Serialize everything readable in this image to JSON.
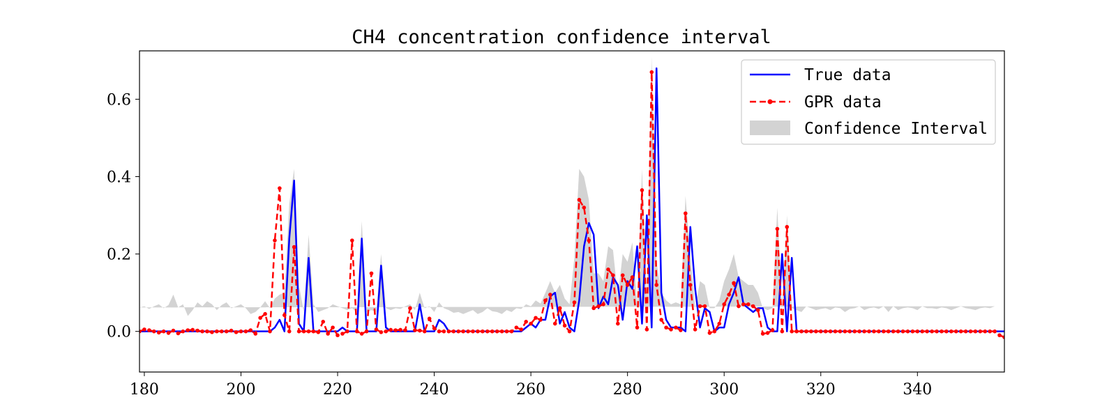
{
  "chart_data": {
    "type": "line",
    "title": "CH4 concentration confidence interval",
    "xlabel": "",
    "ylabel": "",
    "xlim": [
      179,
      358
    ],
    "ylim": [
      -0.105,
      0.725
    ],
    "x_ticks": [
      180,
      200,
      220,
      240,
      260,
      280,
      300,
      320,
      340
    ],
    "y_ticks": [
      0.0,
      0.2,
      0.4,
      0.6
    ],
    "x_tick_labels": [
      "180",
      "200",
      "220",
      "240",
      "260",
      "280",
      "300",
      "320",
      "340"
    ],
    "y_tick_labels": [
      "0.0",
      "0.2",
      "0.4",
      "0.6"
    ],
    "grid": false,
    "legend_position": "top-right",
    "colors": {
      "true_data": "#0000ff",
      "gpr_data": "#ff0000",
      "confidence": "#d3d3d3"
    },
    "legend": [
      {
        "key": "true_data",
        "label": "True data"
      },
      {
        "key": "gpr_data",
        "label": "GPR data"
      },
      {
        "key": "confidence",
        "label": "Confidence Interval"
      }
    ],
    "x_start": 179,
    "x_step": 1,
    "series": [
      {
        "name": "True data",
        "values": [
          0,
          0,
          0,
          0,
          0,
          0,
          0,
          0,
          0,
          0,
          0,
          0,
          0,
          0,
          0,
          0,
          0,
          0,
          0,
          0,
          0,
          0,
          0,
          0,
          0,
          0,
          0,
          0,
          0.01,
          0.03,
          0,
          0.24,
          0.39,
          0.02,
          0,
          0.19,
          0,
          0,
          0,
          0,
          0,
          0,
          0.01,
          0,
          0,
          0,
          0.24,
          0,
          0,
          0,
          0.17,
          0.01,
          0,
          0,
          0,
          0,
          0,
          0,
          0.07,
          0,
          0,
          0,
          0.03,
          0.02,
          0,
          0,
          0,
          0,
          0,
          0,
          0,
          0,
          0,
          0,
          0,
          0,
          0,
          0,
          0,
          0,
          0.01,
          0.02,
          0.01,
          0.03,
          0.03,
          0.09,
          0.1,
          0.02,
          0.05,
          0.01,
          0,
          0.08,
          0.22,
          0.28,
          0.25,
          0.06,
          0.09,
          0.07,
          0.14,
          0.12,
          0.03,
          0.13,
          0.11,
          0.22,
          0.02,
          0.3,
          0.01,
          0.68,
          0.1,
          0.03,
          0.01,
          0.01,
          0.01,
          0,
          0.27,
          0.11,
          0.01,
          0.06,
          0.05,
          0,
          0.01,
          0.01,
          0.07,
          0.1,
          0.14,
          0.07,
          0.06,
          0.05,
          0.06,
          0.06,
          0.01,
          0,
          0,
          0.2,
          0,
          0.19,
          0,
          0,
          0,
          0,
          0,
          0,
          0,
          0,
          0,
          0,
          0,
          0,
          0,
          0,
          0,
          0,
          0,
          0,
          0,
          0,
          0,
          0,
          0,
          0,
          0,
          0,
          0,
          0,
          0,
          0,
          0,
          0,
          0,
          0,
          0,
          0,
          0,
          0,
          0,
          0,
          0,
          0,
          0,
          0,
          0
        ]
      },
      {
        "name": "GPR data",
        "values": [
          0,
          0.005,
          0.003,
          0,
          -0.003,
          0,
          -0.004,
          0.002,
          -0.005,
          0,
          0.003,
          0.004,
          0.002,
          0,
          0,
          -0.002,
          0,
          0,
          0,
          0.002,
          -0.002,
          0,
          0,
          0.003,
          -0.006,
          0.035,
          0.045,
          0,
          0.235,
          0.37,
          0.042,
          0,
          0.218,
          0,
          0,
          0,
          0,
          -0.002,
          0.025,
          -0.006,
          0.01,
          -0.01,
          -0.006,
          0,
          0.235,
          0,
          -0.006,
          0,
          0.15,
          0.005,
          -0.002,
          0,
          0.004,
          0.003,
          0.004,
          0.003,
          0.06,
          0.003,
          0.002,
          0,
          0.033,
          0.008,
          0,
          0,
          0,
          0,
          0,
          0,
          0,
          0,
          0,
          0,
          0,
          0,
          0,
          0,
          0,
          0,
          0.01,
          0.005,
          0.025,
          0.02,
          0.035,
          0.03,
          0.08,
          0.095,
          0.02,
          0.06,
          0.015,
          0,
          0.075,
          0.34,
          0.32,
          0.235,
          0.06,
          0.065,
          0.07,
          0.16,
          0.145,
          0.02,
          0.145,
          0.12,
          0.14,
          0.01,
          0.365,
          0.005,
          0.67,
          0.12,
          0.03,
          0.01,
          0.005,
          0.01,
          0.003,
          0.305,
          0.12,
          0.005,
          0.065,
          0.065,
          -0.004,
          0,
          0.02,
          0.07,
          0.095,
          0.125,
          0.065,
          0.07,
          0.07,
          0.065,
          0.055,
          -0.006,
          -0.004,
          0.003,
          0.265,
          0,
          0.27,
          0,
          0,
          0,
          0,
          0,
          0,
          0,
          0,
          0,
          0,
          0,
          0,
          0,
          0,
          0,
          0,
          0,
          0,
          0,
          0,
          0,
          0,
          0,
          0,
          0,
          0,
          0,
          0,
          0,
          0,
          0,
          0,
          0,
          0,
          0,
          0,
          0,
          0,
          0,
          0,
          0,
          0,
          0,
          -0.01,
          -0.015,
          0
        ]
      },
      {
        "name": "Confidence Interval upper",
        "values": [
          0.062,
          0.065,
          0.058,
          0.065,
          0.07,
          0.06,
          0.068,
          0.095,
          0.062,
          0.07,
          0.04,
          0.055,
          0.075,
          0.065,
          0.078,
          0.07,
          0.055,
          0.068,
          0.075,
          0.06,
          0.065,
          0.07,
          0.06,
          0.045,
          0.05,
          0.062,
          0.078,
          0.06,
          0.085,
          0.095,
          0.1,
          0.33,
          0.42,
          0.12,
          0.05,
          0.25,
          0.07,
          0.05,
          0.055,
          0.06,
          0.07,
          0.065,
          0.06,
          0.055,
          0.06,
          0.05,
          0.285,
          0.05,
          0.055,
          0.05,
          0.2,
          0.06,
          0.055,
          0.06,
          0.058,
          0.065,
          0.07,
          0.055,
          0.1,
          0.06,
          0.065,
          0.05,
          0.075,
          0.06,
          0.055,
          0.048,
          0.05,
          0.045,
          0.05,
          0.055,
          0.045,
          0.05,
          0.06,
          0.052,
          0.05,
          0.045,
          0.055,
          0.05,
          0.06,
          0.058,
          0.07,
          0.065,
          0.08,
          0.072,
          0.1,
          0.13,
          0.1,
          0.12,
          0.085,
          0.07,
          0.19,
          0.42,
          0.4,
          0.34,
          0.15,
          0.15,
          0.13,
          0.22,
          0.21,
          0.09,
          0.2,
          0.18,
          0.23,
          0.07,
          0.42,
          0.08,
          0.71,
          0.18,
          0.1,
          0.08,
          0.07,
          0.075,
          0.07,
          0.35,
          0.2,
          0.06,
          0.13,
          0.12,
          0.06,
          0.06,
          0.08,
          0.13,
          0.16,
          0.2,
          0.14,
          0.13,
          0.12,
          0.12,
          0.1,
          0.06,
          0.055,
          0.06,
          0.32,
          0.06,
          0.3,
          0.06,
          0.055,
          0.05,
          0.065,
          0.06,
          0.055,
          0.058,
          0.06,
          0.055,
          0.062,
          0.06,
          0.05,
          0.058,
          0.06,
          0.065,
          0.055,
          0.06,
          0.062,
          0.058,
          0.065,
          0.05,
          0.065,
          0.055,
          0.06,
          0.062,
          0.06,
          0.055,
          0.065,
          0.06,
          0.06,
          0.058,
          0.062,
          0.06,
          0.055,
          0.06,
          0.065,
          0.06,
          0.058,
          0.055,
          0.06,
          0.062,
          0.06,
          0.065
        ]
      },
      {
        "name": "Confidence Interval lower",
        "values": [
          -0.055,
          -0.05,
          -0.06,
          -0.06,
          -0.065,
          -0.07,
          -0.09,
          -0.07,
          -0.06,
          -0.065,
          -0.085,
          -0.06,
          -0.065,
          -0.06,
          -0.05,
          -0.055,
          -0.07,
          -0.065,
          -0.06,
          -0.065,
          -0.05,
          -0.06,
          -0.065,
          -0.06,
          -0.06,
          -0.065,
          -0.06,
          -0.07,
          -0.08,
          -0.045,
          -0.05,
          0.1,
          0.33,
          -0.02,
          -0.06,
          0.15,
          -0.06,
          -0.06,
          -0.065,
          -0.06,
          -0.055,
          -0.06,
          -0.07,
          -0.06,
          -0.065,
          -0.06,
          0.18,
          -0.06,
          -0.065,
          -0.06,
          0.1,
          -0.06,
          -0.065,
          -0.06,
          -0.06,
          -0.065,
          -0.06,
          -0.065,
          0.01,
          -0.06,
          -0.065,
          -0.07,
          -0.01,
          -0.05,
          -0.055,
          -0.06,
          -0.065,
          -0.06,
          -0.055,
          -0.06,
          -0.06,
          -0.055,
          -0.05,
          -0.06,
          -0.065,
          -0.06,
          -0.055,
          -0.06,
          -0.05,
          -0.055,
          -0.045,
          -0.05,
          -0.035,
          -0.04,
          0.0,
          0.06,
          -0.04,
          -0.02,
          -0.06,
          -0.07,
          -0.05,
          0.26,
          0.24,
          0.13,
          -0.03,
          -0.01,
          0.0,
          0.1,
          0.08,
          -0.05,
          0.09,
          0.06,
          0.05,
          -0.05,
          0.3,
          -0.05,
          0.63,
          0.06,
          -0.04,
          -0.05,
          -0.06,
          -0.055,
          -0.06,
          0.25,
          0.06,
          -0.06,
          -0.01,
          -0.01,
          -0.06,
          -0.07,
          -0.04,
          0.0,
          0.04,
          0.05,
          0.0,
          0.01,
          0.0,
          0.0,
          -0.03,
          -0.06,
          -0.09,
          -0.07,
          0.2,
          -0.06,
          0.2,
          -0.06,
          -0.065,
          -0.07,
          -0.06,
          -0.055,
          -0.065,
          -0.06,
          -0.07,
          -0.065,
          -0.06,
          -0.055,
          -0.07,
          -0.06,
          -0.055,
          -0.06,
          -0.065,
          -0.07,
          -0.06,
          -0.06,
          -0.055,
          -0.07,
          -0.06,
          -0.065,
          -0.06,
          -0.06,
          -0.055,
          -0.065,
          -0.06,
          -0.07,
          -0.06,
          -0.06,
          -0.065,
          -0.06,
          -0.07,
          -0.065,
          -0.06,
          -0.07,
          -0.08,
          -0.075,
          -0.07,
          -0.06,
          -0.065,
          -0.06
        ]
      }
    ]
  }
}
